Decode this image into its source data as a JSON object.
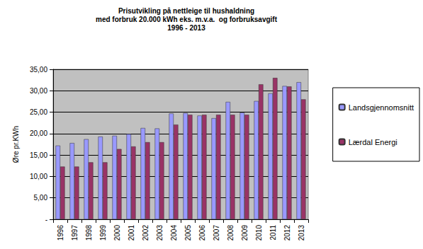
{
  "chart_data": {
    "type": "bar",
    "title": "Prisutvikling på nettleige til hushaldning\nmed forbruk 20.000 kWh eks. m.v.a.  og forbruksavgift\n1996 - 2013",
    "y_label": "Øre pr.KWh",
    "categories": [
      "1996",
      "1997",
      "1998",
      "1999",
      "2000",
      "2001",
      "2002",
      "2003",
      "2004",
      "2005",
      "2006",
      "2007",
      "2008",
      "2009",
      "2010",
      "2011",
      "2012",
      "2013"
    ],
    "series": [
      {
        "name": "Landsgjennomsnitt",
        "color": "#9999ff",
        "values": [
          17.2,
          17.8,
          18.7,
          19.3,
          19.5,
          19.9,
          21.3,
          21.2,
          24.7,
          24.8,
          24.2,
          23.6,
          27.4,
          24.9,
          27.6,
          29.4,
          31.1,
          32.0
        ]
      },
      {
        "name": "Lærdal Energi",
        "color": "#993366",
        "values": [
          12.3,
          12.3,
          13.3,
          13.3,
          16.4,
          17.0,
          18.0,
          18.0,
          22.1,
          24.4,
          24.4,
          24.4,
          24.4,
          24.4,
          31.5,
          33.0,
          31.0,
          28.0
        ]
      }
    ],
    "ylim": [
      0,
      35
    ],
    "yticks": [
      {
        "value": 0,
        "label": "-"
      },
      {
        "value": 5,
        "label": "5,00"
      },
      {
        "value": 10,
        "label": "10,00"
      },
      {
        "value": 15,
        "label": "15,00"
      },
      {
        "value": 20,
        "label": "20,00"
      },
      {
        "value": 25,
        "label": "25,00"
      },
      {
        "value": 30,
        "label": "30,00"
      },
      {
        "value": 35,
        "label": "35,00"
      }
    ],
    "grid": true,
    "legend": "right"
  }
}
